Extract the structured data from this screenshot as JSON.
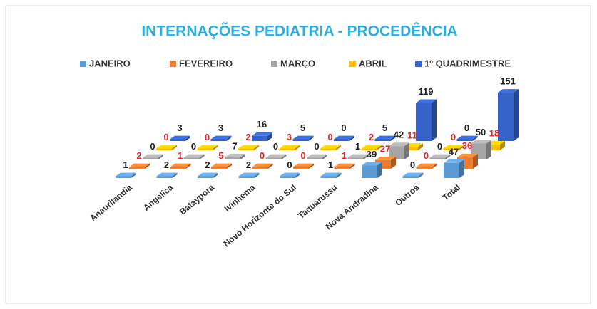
{
  "chart_data": {
    "type": "bar3d",
    "title": "INTERNAÇÕES PEDIATRIA - PROCEDÊNCIA",
    "categories": [
      "Anaurilandia",
      "Angelica",
      "Bataypora",
      "Ivinhema",
      "Novo Horizonte do Sul",
      "Taquarussu",
      "Nova Andradina",
      "Outros",
      "Total"
    ],
    "series": [
      {
        "name": "JANEIRO",
        "color": "#5b9bd5",
        "label_color": "#222222",
        "values": [
          1,
          2,
          2,
          2,
          0,
          1,
          39,
          0,
          47
        ]
      },
      {
        "name": "FEVEREIRO",
        "color": "#ed7d31",
        "label_color": "#e8202a",
        "values": [
          2,
          1,
          5,
          0,
          0,
          1,
          27,
          0,
          36
        ]
      },
      {
        "name": "MARÇO",
        "color": "#a5a5a5",
        "label_color": "#222222",
        "values": [
          0,
          0,
          7,
          0,
          0,
          1,
          42,
          0,
          50
        ]
      },
      {
        "name": "ABRIL",
        "color": "#ffc000",
        "label_color": "#e8202a",
        "values": [
          0,
          0,
          2,
          3,
          0,
          2,
          11,
          0,
          18
        ]
      },
      {
        "name": "1º QUADRIMESTRE",
        "color": "#3563c8",
        "label_color": "#222222",
        "values": [
          3,
          3,
          16,
          5,
          0,
          5,
          119,
          0,
          151
        ]
      }
    ]
  }
}
